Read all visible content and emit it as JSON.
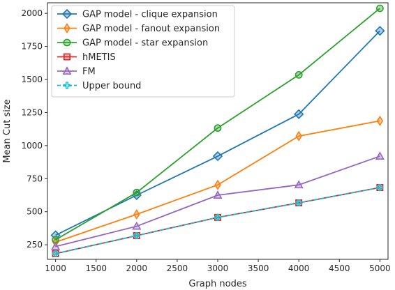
{
  "chart_data": {
    "type": "line",
    "title": "",
    "xlabel": "Graph nodes",
    "ylabel": "Mean Cut size",
    "x": [
      1000,
      2000,
      3000,
      4000,
      5000
    ],
    "xlim": [
      900,
      5100
    ],
    "ylim": [
      140,
      2080
    ],
    "xticks": [
      1000,
      1500,
      2000,
      2500,
      3000,
      3500,
      4000,
      4500,
      5000
    ],
    "yticks": [
      250,
      500,
      750,
      1000,
      1250,
      1500,
      1750,
      2000
    ],
    "grid": false,
    "legend_position": "top-left",
    "series": [
      {
        "name": "GAP model - clique expansion",
        "values": [
          322,
          625,
          920,
          1238,
          1868
        ],
        "color": "#1f77b4",
        "marker": "diamond",
        "dash": "solid"
      },
      {
        "name": "GAP model - fanout expansion",
        "values": [
          270,
          480,
          703,
          1072,
          1187
        ],
        "color": "#ff7f0e",
        "marker": "thin-diamond",
        "dash": "solid"
      },
      {
        "name": "GAP model - star expansion",
        "values": [
          288,
          645,
          1133,
          1535,
          2038
        ],
        "color": "#2ca02c",
        "marker": "circle",
        "dash": "solid"
      },
      {
        "name": "hMETIS",
        "values": [
          183,
          319,
          457,
          567,
          683
        ],
        "color": "#d62728",
        "marker": "square",
        "dash": "solid"
      },
      {
        "name": "FM",
        "values": [
          237,
          390,
          625,
          703,
          920
        ],
        "color": "#9467bd",
        "marker": "triangle",
        "dash": "solid"
      },
      {
        "name": "Upper bound",
        "values": [
          183,
          319,
          457,
          567,
          683
        ],
        "color": "#17becf",
        "marker": "plus",
        "dash": "dashed"
      }
    ]
  }
}
